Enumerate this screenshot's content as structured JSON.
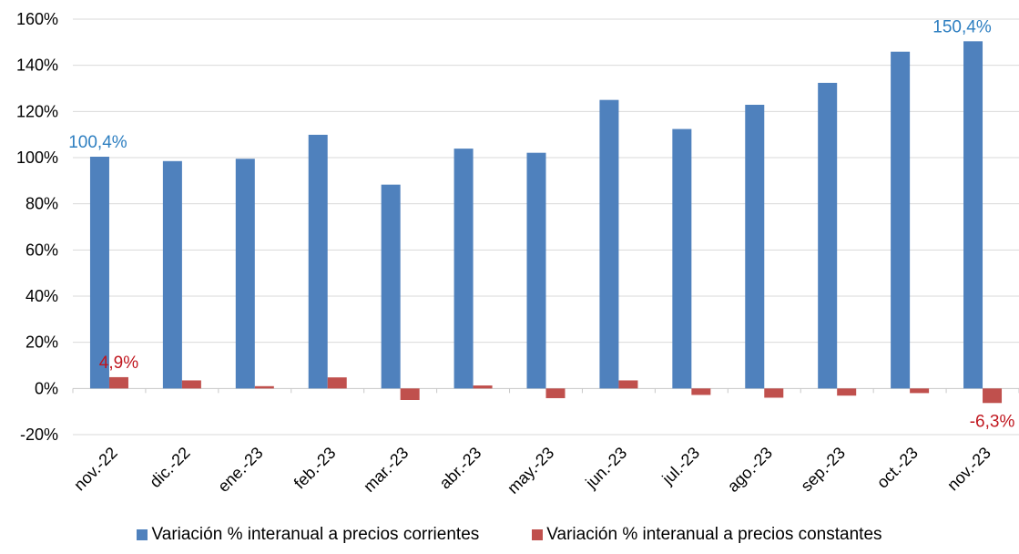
{
  "chart_data": {
    "type": "bar",
    "categories": [
      "nov.-22",
      "dic.-22",
      "ene.-23",
      "feb.-23",
      "mar.-23",
      "abr.-23",
      "may.-23",
      "jun.-23",
      "jul.-23",
      "ago.-23",
      "sep.-23",
      "oct.-23",
      "nov.-23"
    ],
    "series": [
      {
        "name": "Variación % interanual a precios corrientes",
        "color": "#4f81bd",
        "values": [
          100.4,
          98.5,
          99.5,
          109.9,
          88.3,
          103.9,
          102.1,
          125.0,
          112.4,
          122.9,
          132.4,
          145.9,
          150.4
        ]
      },
      {
        "name": "Variación % interanual a precios constantes",
        "color": "#c0504d",
        "values": [
          4.9,
          3.5,
          1.0,
          4.8,
          -5.0,
          1.3,
          -4.2,
          3.5,
          -2.8,
          -4.0,
          -3.1,
          -2.0,
          -6.3
        ]
      }
    ],
    "yticks": [
      "-20%",
      "0%",
      "20%",
      "40%",
      "60%",
      "80%",
      "100%",
      "120%",
      "140%",
      "160%"
    ],
    "ylim": [
      -20,
      160
    ],
    "ytick_step": 20,
    "grid": "horizontal",
    "legend_position": "bottom",
    "data_labels": [
      {
        "series": 0,
        "index": 0,
        "text": "100,4%",
        "color": "#2e7fc1"
      },
      {
        "series": 1,
        "index": 0,
        "text": "4,9%",
        "color": "#c0171f"
      },
      {
        "series": 0,
        "index": 12,
        "text": "150,4%",
        "color": "#2e7fc1"
      },
      {
        "series": 1,
        "index": 12,
        "text": "-6,3%",
        "color": "#c0171f"
      }
    ]
  }
}
